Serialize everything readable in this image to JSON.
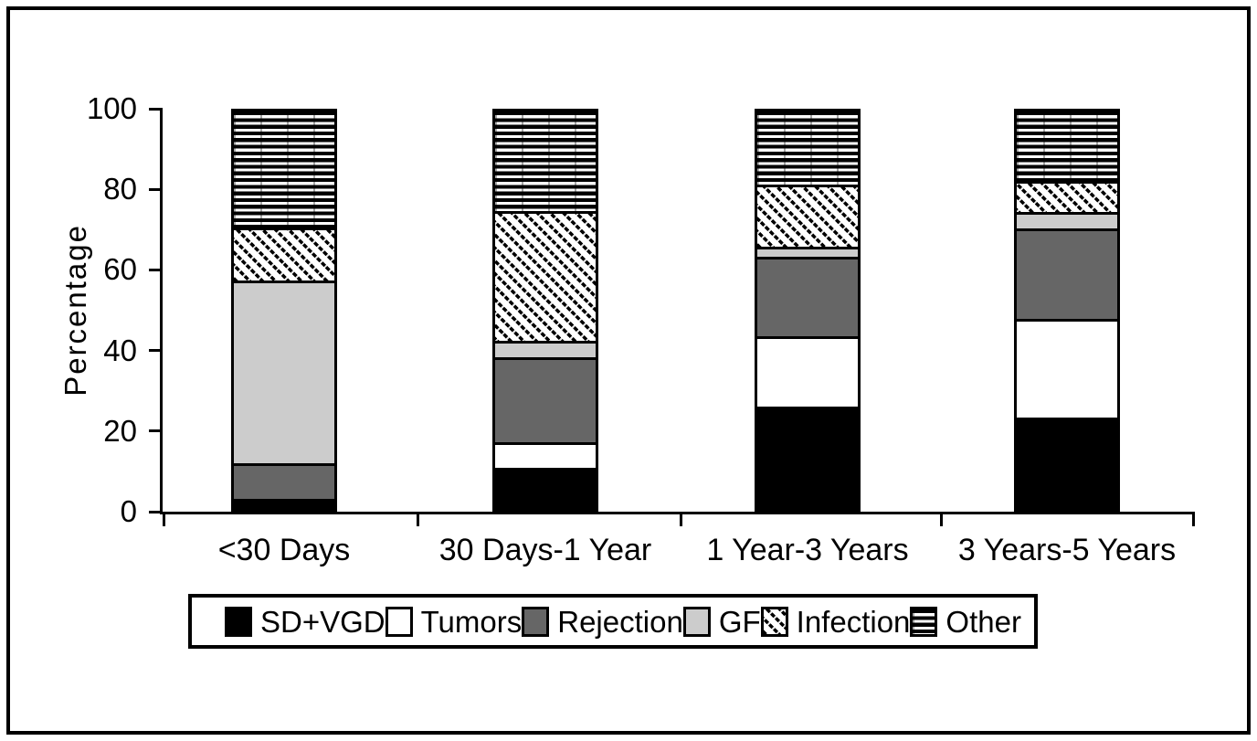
{
  "figure": {
    "background": "#ffffff",
    "frame_color": "#000000"
  },
  "chart_data": {
    "type": "bar",
    "stacked": true,
    "title": "",
    "xlabel": "",
    "ylabel": "Percentage",
    "ylim": [
      0,
      100
    ],
    "yticks": [
      0,
      20,
      40,
      60,
      80,
      100
    ],
    "grid": false,
    "legend": {
      "position": "bottom"
    },
    "categories": [
      "<30 Days",
      "30 Days-1 Year",
      "1 Year-3 Years",
      "3 Years-5 Years"
    ],
    "series": [
      {
        "name": "SD+VGD",
        "pattern": "solid",
        "fill": "#000000",
        "values": [
          2,
          10,
          26,
          23
        ]
      },
      {
        "name": "Tumors",
        "pattern": "solid",
        "fill": "#ffffff",
        "values": [
          0,
          6,
          17.5,
          25
        ]
      },
      {
        "name": "Rejection",
        "pattern": "solid",
        "fill": "#666666",
        "values": [
          8.5,
          21.5,
          20,
          23
        ]
      },
      {
        "name": "GF",
        "pattern": "solid",
        "fill": "#cccccc",
        "values": [
          46.5,
          3.5,
          2,
          3.5
        ]
      },
      {
        "name": "Infection",
        "pattern": "diagonal-hatch",
        "fill": "#000000",
        "values": [
          13,
          33,
          15.5,
          7.5
        ]
      },
      {
        "name": "Other",
        "pattern": "horizontal-hatch",
        "fill": "#000000",
        "values": [
          30,
          26,
          19,
          18
        ]
      }
    ]
  }
}
